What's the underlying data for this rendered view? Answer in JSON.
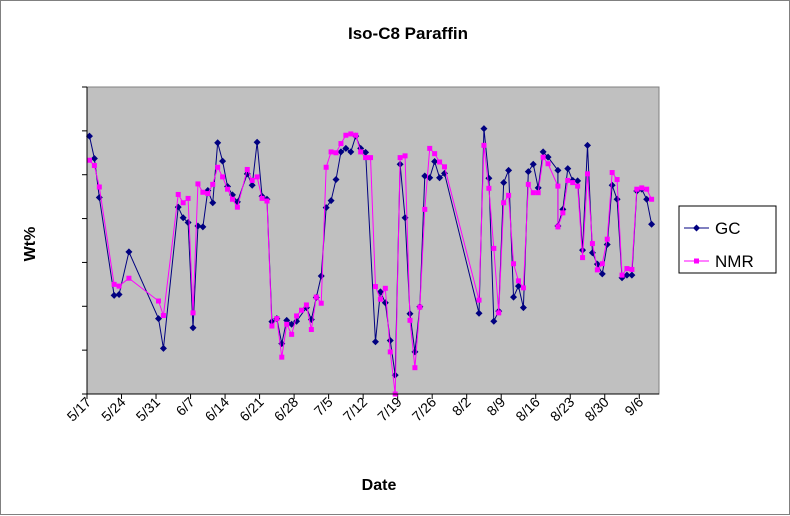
{
  "chart_data": {
    "type": "line",
    "title": "Iso-C8 Paraffin",
    "xlabel": "Date",
    "ylabel": "Wt%",
    "xlim": [
      "5/17",
      "9/9"
    ],
    "ylim": [
      0,
      7
    ],
    "y_tick_labels_shown": false,
    "x_tick_labels": [
      "5/17",
      "5/24",
      "5/31",
      "6/7",
      "6/14",
      "6/21",
      "6/28",
      "7/5",
      "7/12",
      "7/19",
      "7/26",
      "8/2",
      "8/9",
      "8/16",
      "8/23",
      "8/30",
      "9/6"
    ],
    "grid": false,
    "legend_position": "right",
    "plot_background": "#C0C0C0",
    "series": [
      {
        "name": "GC",
        "color": "#000080",
        "marker": "diamond",
        "points": [
          [
            "5/17",
            5.88
          ],
          [
            "5/18",
            5.37
          ],
          [
            "5/19",
            4.48
          ],
          [
            "5/22",
            2.25
          ],
          [
            "5/23",
            2.27
          ],
          [
            "5/25",
            3.24
          ],
          [
            "5/31",
            1.72
          ],
          [
            "6/1",
            1.04
          ],
          [
            "6/4",
            4.26
          ],
          [
            "6/5",
            4.02
          ],
          [
            "6/6",
            3.91
          ],
          [
            "6/7",
            1.51
          ],
          [
            "6/8",
            3.83
          ],
          [
            "6/9",
            3.81
          ],
          [
            "6/10",
            4.64
          ],
          [
            "6/11",
            4.36
          ],
          [
            "6/12",
            5.73
          ],
          [
            "6/13",
            5.31
          ],
          [
            "6/14",
            4.73
          ],
          [
            "6/15",
            4.54
          ],
          [
            "6/16",
            4.38
          ],
          [
            "6/18",
            5.02
          ],
          [
            "6/19",
            4.76
          ],
          [
            "6/20",
            5.74
          ],
          [
            "6/21",
            4.51
          ],
          [
            "6/22",
            4.44
          ],
          [
            "6/23",
            1.65
          ],
          [
            "6/24",
            1.72
          ],
          [
            "6/25",
            1.15
          ],
          [
            "6/26",
            1.68
          ],
          [
            "6/27",
            1.59
          ],
          [
            "6/28",
            1.66
          ],
          [
            "6/30",
            1.97
          ],
          [
            "7/1",
            1.7
          ],
          [
            "7/2",
            2.2
          ],
          [
            "7/3",
            2.69
          ],
          [
            "7/4",
            4.25
          ],
          [
            "7/5",
            4.41
          ],
          [
            "7/6",
            4.89
          ],
          [
            "7/7",
            5.52
          ],
          [
            "7/8",
            5.6
          ],
          [
            "7/9",
            5.52
          ],
          [
            "7/10",
            5.88
          ],
          [
            "7/11",
            5.6
          ],
          [
            "7/12",
            5.51
          ],
          [
            "7/14",
            1.19
          ],
          [
            "7/15",
            2.33
          ],
          [
            "7/16",
            2.08
          ],
          [
            "7/17",
            1.22
          ],
          [
            "7/18",
            0.43
          ],
          [
            "7/19",
            5.24
          ],
          [
            "7/20",
            4.02
          ],
          [
            "7/21",
            1.83
          ],
          [
            "7/22",
            0.96
          ],
          [
            "7/23",
            1.99
          ],
          [
            "7/24",
            4.97
          ],
          [
            "7/25",
            4.93
          ],
          [
            "7/26",
            5.3
          ],
          [
            "7/27",
            4.93
          ],
          [
            "7/28",
            5.03
          ],
          [
            "8/4",
            1.84
          ],
          [
            "8/5",
            6.05
          ],
          [
            "8/6",
            4.92
          ],
          [
            "8/7",
            1.66
          ],
          [
            "8/8",
            1.89
          ],
          [
            "8/9",
            4.82
          ],
          [
            "8/10",
            5.1
          ],
          [
            "8/11",
            2.21
          ],
          [
            "8/12",
            2.46
          ],
          [
            "8/13",
            1.97
          ],
          [
            "8/14",
            5.07
          ],
          [
            "8/15",
            5.24
          ],
          [
            "8/16",
            4.7
          ],
          [
            "8/17",
            5.52
          ],
          [
            "8/18",
            5.4
          ],
          [
            "8/20",
            5.1
          ],
          [
            "8/20",
            3.83
          ],
          [
            "8/21",
            4.21
          ],
          [
            "8/22",
            5.14
          ],
          [
            "8/23",
            4.87
          ],
          [
            "8/24",
            4.86
          ],
          [
            "8/25",
            3.28
          ],
          [
            "8/26",
            5.67
          ],
          [
            "8/27",
            3.22
          ],
          [
            "8/28",
            2.96
          ],
          [
            "8/29",
            2.74
          ],
          [
            "8/30",
            3.41
          ],
          [
            "8/31",
            4.76
          ],
          [
            "9/1",
            4.44
          ],
          [
            "9/2",
            2.65
          ],
          [
            "9/3",
            2.71
          ],
          [
            "9/4",
            2.71
          ],
          [
            "9/5",
            4.63
          ],
          [
            "9/6",
            4.67
          ],
          [
            "9/7",
            4.44
          ],
          [
            "9/8",
            3.87
          ]
        ]
      },
      {
        "name": "NMR",
        "color": "#FF00FF",
        "marker": "square",
        "points": [
          [
            "5/17",
            5.33
          ],
          [
            "5/18",
            5.21
          ],
          [
            "5/19",
            4.72
          ],
          [
            "5/22",
            2.5
          ],
          [
            "5/23",
            2.46
          ],
          [
            "5/25",
            2.64
          ],
          [
            "5/31",
            2.12
          ],
          [
            "6/1",
            1.79
          ],
          [
            "6/4",
            4.55
          ],
          [
            "6/5",
            4.36
          ],
          [
            "6/6",
            4.46
          ],
          [
            "6/7",
            1.85
          ],
          [
            "6/8",
            4.79
          ],
          [
            "6/9",
            4.6
          ],
          [
            "6/10",
            4.57
          ],
          [
            "6/11",
            4.78
          ],
          [
            "6/12",
            5.17
          ],
          [
            "6/13",
            4.95
          ],
          [
            "6/14",
            4.67
          ],
          [
            "6/15",
            4.44
          ],
          [
            "6/16",
            4.26
          ],
          [
            "6/18",
            5.12
          ],
          [
            "6/19",
            4.87
          ],
          [
            "6/20",
            4.95
          ],
          [
            "6/21",
            4.46
          ],
          [
            "6/22",
            4.4
          ],
          [
            "6/23",
            1.55
          ],
          [
            "6/24",
            1.72
          ],
          [
            "6/25",
            0.84
          ],
          [
            "6/26",
            1.59
          ],
          [
            "6/27",
            1.36
          ],
          [
            "6/28",
            1.78
          ],
          [
            "6/29",
            1.91
          ],
          [
            "6/30",
            2.03
          ],
          [
            "7/1",
            1.47
          ],
          [
            "7/2",
            2.21
          ],
          [
            "7/3",
            2.07
          ],
          [
            "7/4",
            5.17
          ],
          [
            "7/5",
            5.52
          ],
          [
            "7/6",
            5.5
          ],
          [
            "7/7",
            5.71
          ],
          [
            "7/8",
            5.9
          ],
          [
            "7/9",
            5.93
          ],
          [
            "7/10",
            5.9
          ],
          [
            "7/11",
            5.52
          ],
          [
            "7/12",
            5.39
          ],
          [
            "7/13",
            5.39
          ],
          [
            "7/14",
            2.45
          ],
          [
            "7/15",
            2.16
          ],
          [
            "7/16",
            2.41
          ],
          [
            "7/17",
            0.96
          ],
          [
            "7/18",
            0.0
          ],
          [
            "7/19",
            5.39
          ],
          [
            "7/20",
            5.43
          ],
          [
            "7/21",
            1.68
          ],
          [
            "7/22",
            0.6
          ],
          [
            "7/23",
            1.98
          ],
          [
            "7/24",
            4.21
          ],
          [
            "7/25",
            5.6
          ],
          [
            "7/26",
            5.48
          ],
          [
            "7/27",
            5.29
          ],
          [
            "7/28",
            5.18
          ],
          [
            "8/4",
            2.14
          ],
          [
            "8/5",
            5.67
          ],
          [
            "8/6",
            4.69
          ],
          [
            "8/7",
            3.32
          ],
          [
            "8/8",
            1.85
          ],
          [
            "8/9",
            4.36
          ],
          [
            "8/10",
            4.53
          ],
          [
            "8/11",
            2.97
          ],
          [
            "8/12",
            2.58
          ],
          [
            "8/13",
            2.42
          ],
          [
            "8/14",
            4.78
          ],
          [
            "8/15",
            4.59
          ],
          [
            "8/16",
            4.59
          ],
          [
            "8/17",
            5.4
          ],
          [
            "8/18",
            5.25
          ],
          [
            "8/20",
            4.74
          ],
          [
            "8/20",
            3.81
          ],
          [
            "8/21",
            4.13
          ],
          [
            "8/22",
            4.87
          ],
          [
            "8/23",
            4.82
          ],
          [
            "8/24",
            4.74
          ],
          [
            "8/25",
            3.11
          ],
          [
            "8/26",
            5.02
          ],
          [
            "8/27",
            3.43
          ],
          [
            "8/28",
            2.83
          ],
          [
            "8/29",
            2.97
          ],
          [
            "8/30",
            3.53
          ],
          [
            "8/31",
            5.05
          ],
          [
            "9/1",
            4.89
          ],
          [
            "9/2",
            2.71
          ],
          [
            "9/3",
            2.86
          ],
          [
            "9/4",
            2.84
          ],
          [
            "9/5",
            4.67
          ],
          [
            "9/6",
            4.7
          ],
          [
            "9/7",
            4.67
          ],
          [
            "9/8",
            4.44
          ]
        ]
      }
    ]
  }
}
